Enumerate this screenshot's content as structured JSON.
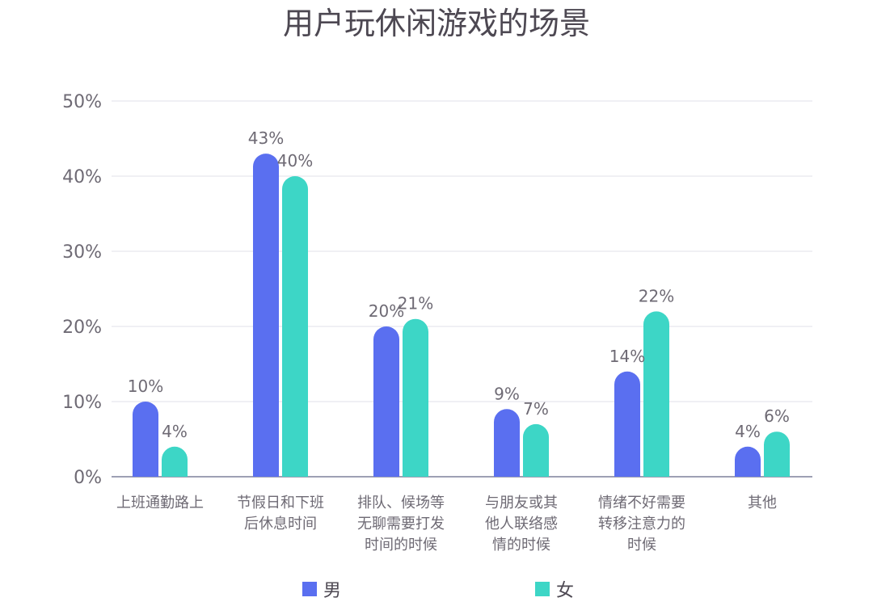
{
  "chart_data": {
    "type": "bar",
    "title": "用户玩休闲游戏的场景",
    "categories": [
      [
        "上班通勤路上"
      ],
      [
        "节假日和下班",
        "后休息时间"
      ],
      [
        "排队、候场等",
        "无聊需要打发",
        "时间的时候"
      ],
      [
        "与朋友或其",
        "他人联络感",
        "情的时候"
      ],
      [
        "情绪不好需要",
        "转移注意力的",
        "时候"
      ],
      [
        "其他"
      ]
    ],
    "series": [
      {
        "name": "男",
        "values": [
          10,
          43,
          20,
          9,
          14,
          4
        ],
        "labels": [
          "10%",
          "43%",
          "20%",
          "9%",
          "14%",
          "4%"
        ]
      },
      {
        "name": "女",
        "values": [
          4,
          40,
          21,
          7,
          22,
          6
        ],
        "labels": [
          "4%",
          "40%",
          "21%",
          "7%",
          "22%",
          "6%"
        ]
      }
    ],
    "y_ticks": [
      "0%",
      "10%",
      "20%",
      "30%",
      "40%",
      "50%"
    ],
    "ylim": [
      0,
      50
    ],
    "grid": true,
    "legend_position": "bottom",
    "colors": {
      "男": "#5a6ff0",
      "女": "#3dd6c6",
      "text": "#6e6a74",
      "title": "#4d4852",
      "grid": "#ececf0",
      "axis": "#9da0b4"
    }
  }
}
